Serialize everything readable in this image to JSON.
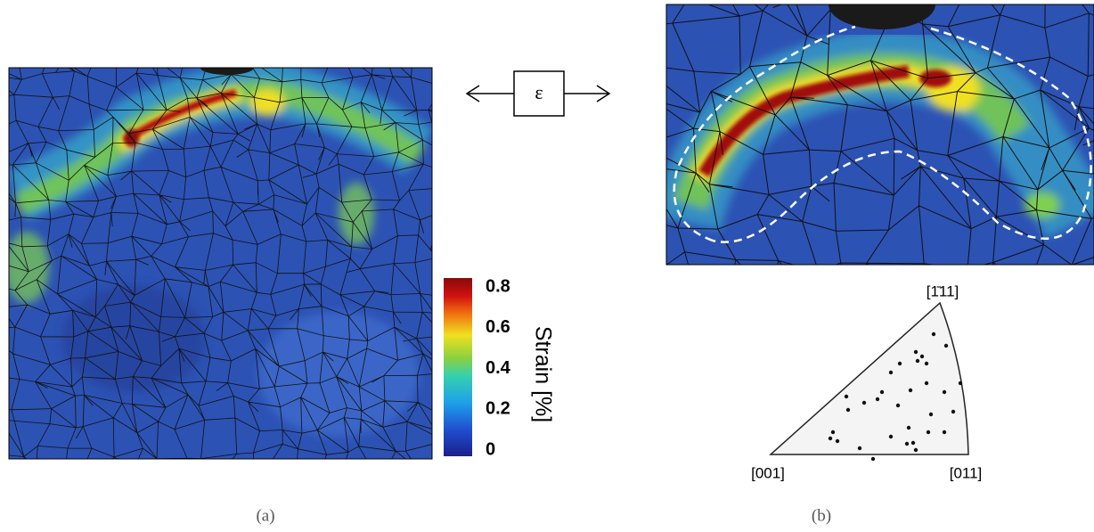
{
  "figure": {
    "panel_a": {
      "label": "(a)",
      "colorbar": {
        "label": "Strain [%]",
        "lim": [
          0,
          0.8
        ],
        "ticks": [
          0,
          0.2,
          0.4,
          0.6,
          0.8
        ]
      }
    },
    "loading": {
      "symbol": "ε"
    },
    "panel_b": {
      "label": "(b)",
      "ipf": {
        "corners": [
          "[1̄11]",
          "[001]",
          "[011]"
        ]
      }
    }
  }
}
